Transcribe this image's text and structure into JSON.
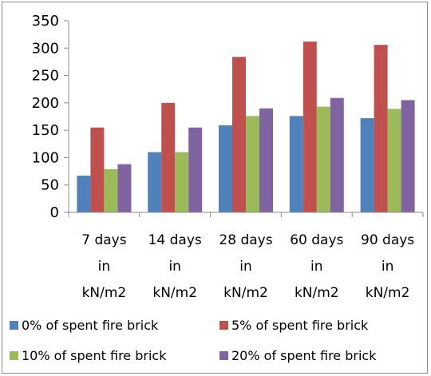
{
  "chart_data": {
    "type": "bar",
    "title": "",
    "xlabel": "",
    "ylabel": "",
    "ylim": [
      0,
      350
    ],
    "ytick_step": 50,
    "grid": false,
    "legend_position": "bottom",
    "categories": [
      [
        "7 days",
        "in",
        "kN/m2"
      ],
      [
        "14 days",
        "in",
        "kN/m2"
      ],
      [
        "28 days",
        "in",
        "kN/m2"
      ],
      [
        "60 days",
        "in",
        "kN/m2"
      ],
      [
        "90 days",
        "in",
        "kN/m2"
      ]
    ],
    "series": [
      {
        "name": "0% of spent fire brick",
        "color": "#4f81bd",
        "values": [
          67,
          110,
          159,
          176,
          172
        ]
      },
      {
        "name": "5% of spent fire brick",
        "color": "#c0504d",
        "values": [
          155,
          200,
          284,
          312,
          306
        ]
      },
      {
        "name": "10% of spent fire brick",
        "color": "#9bbb59",
        "values": [
          79,
          110,
          176,
          193,
          189
        ]
      },
      {
        "name": "20% of spent fire brick",
        "color": "#8064a2",
        "values": [
          88,
          155,
          190,
          209,
          205
        ]
      }
    ]
  }
}
